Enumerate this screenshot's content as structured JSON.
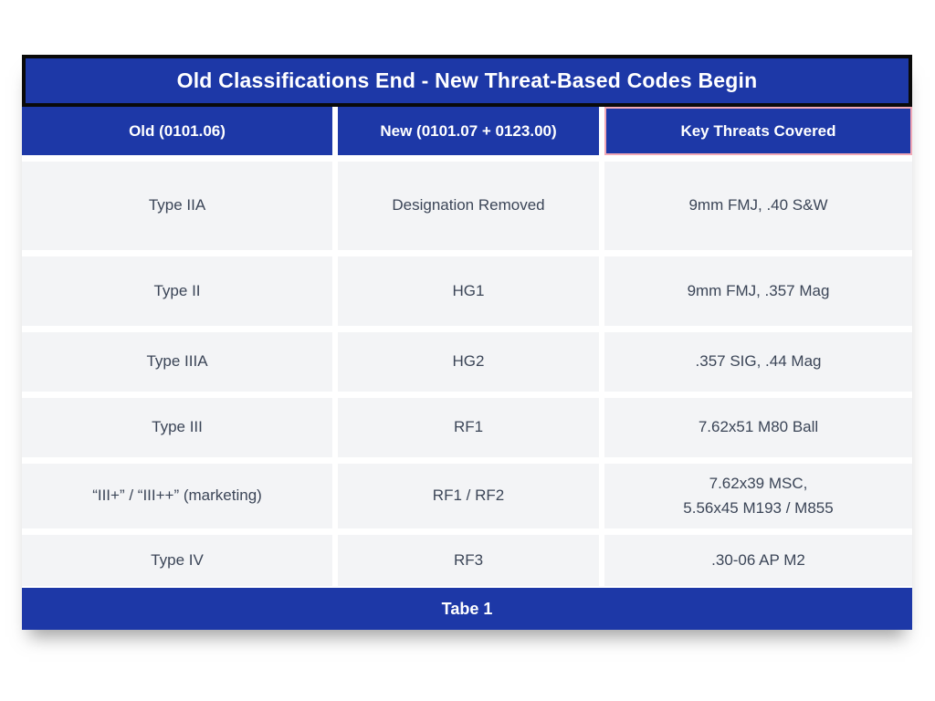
{
  "title": "Old Classifications End - New Threat-Based Codes Begin",
  "caption": "Tabe 1",
  "columns": {
    "old": "Old (0101.06)",
    "new": "New (0101.07 + 0123.00)",
    "threats": "Key Threats Covered"
  },
  "rows": [
    {
      "old": "Type IIA",
      "new": "Designation Removed",
      "threats": "9mm FMJ, .40 S&W"
    },
    {
      "old": "Type II",
      "new": "HG1",
      "threats": "9mm FMJ, .357 Mag"
    },
    {
      "old": "Type IIIA",
      "new": "HG2",
      "threats": ".357 SIG, .44 Mag"
    },
    {
      "old": "Type III",
      "new": "RF1",
      "threats": "7.62x51 M80 Ball"
    },
    {
      "old": "“III+” / “III++” (marketing)",
      "new": "RF1 / RF2",
      "threats": "7.62x39 MSC,\n5.56x45 M193 / M855"
    },
    {
      "old": "Type IV",
      "new": "RF3",
      "threats": ".30-06 AP M2"
    }
  ],
  "colors": {
    "accent_blue": "#1d38a7",
    "highlight_pink": "#f2a9b6",
    "cell_gray": "#f3f4f6",
    "title_border_black": "#0a0a0a",
    "cell_text": "#3b4557",
    "header_text": "#ffffff"
  }
}
